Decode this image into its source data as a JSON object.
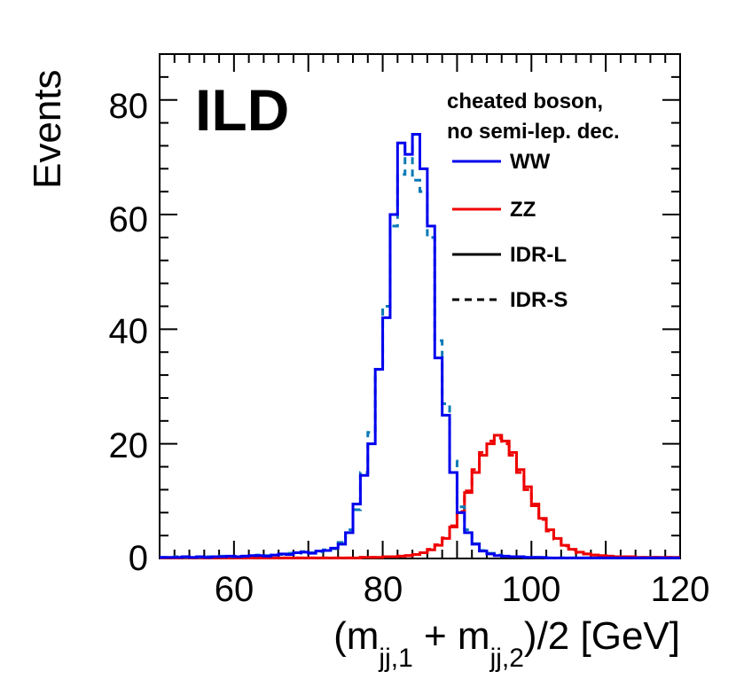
{
  "chart_data": {
    "type": "line",
    "title": "",
    "experiment_label": "ILD",
    "annotation_lines": [
      "cheated boson,",
      "no semi-lep. dec."
    ],
    "xlabel": {
      "open": "(m",
      "sub1": "jj,1",
      "mid": " + m",
      "sub2": "jj,2",
      "close": ")/2 [GeV]"
    },
    "ylabel": "Events",
    "xlim": [
      50,
      120
    ],
    "ylim": [
      0,
      88
    ],
    "xticks": [
      60,
      80,
      100,
      120
    ],
    "yticks": [
      0,
      20,
      40,
      60,
      80
    ],
    "x_tick_labels": [
      "60",
      "80",
      "100",
      "120"
    ],
    "y_tick_labels": [
      "0",
      "20",
      "40",
      "60",
      "80"
    ],
    "legend": [
      {
        "label": "WW",
        "color": "#0000ee",
        "style": "solid"
      },
      {
        "label": "ZZ",
        "color": "#ee0000",
        "style": "solid"
      },
      {
        "label": "IDR-L",
        "color": "#000000",
        "style": "solid"
      },
      {
        "label": "IDR-S",
        "color": "#000000",
        "style": "dashed"
      }
    ],
    "bin_edges_start": 50,
    "bin_width": 1,
    "series": [
      {
        "name": "WW IDR-L",
        "color": "#0000ee",
        "style": "solid",
        "values": [
          0.2,
          0.2,
          0.2,
          0.3,
          0.2,
          0.3,
          0.2,
          0.3,
          0.3,
          0.4,
          0.3,
          0.4,
          0.5,
          0.5,
          0.4,
          0.6,
          0.8,
          0.7,
          1.0,
          1.1,
          0.9,
          1.3,
          1.4,
          1.8,
          2.5,
          4.5,
          9.5,
          14.5,
          20,
          33,
          42,
          60,
          72.5,
          70.5,
          74,
          68,
          58,
          35,
          25,
          15,
          8,
          4.5,
          2.5,
          1.3,
          0.8,
          0.5,
          0.4,
          0.3,
          0.3,
          0.2,
          0.2,
          0.2,
          0.1,
          0.1,
          0.1,
          0.1,
          0.1,
          0.1,
          0.1,
          0.1,
          0.1,
          0.1,
          0.1,
          0.1,
          0.1,
          0.1,
          0.1,
          0.1,
          0.1,
          0.1
        ]
      },
      {
        "name": "WW IDR-S",
        "color": "#0a7ab5",
        "style": "dashed",
        "values": [
          0.2,
          0.2,
          0.3,
          0.2,
          0.3,
          0.2,
          0.3,
          0.3,
          0.4,
          0.3,
          0.4,
          0.4,
          0.5,
          0.6,
          0.5,
          0.6,
          0.7,
          0.9,
          0.9,
          1.2,
          1.0,
          1.2,
          1.5,
          1.7,
          2.8,
          5,
          8.5,
          15,
          22,
          33,
          44,
          58,
          67,
          72,
          66,
          64,
          56,
          38,
          27,
          17,
          9,
          5,
          2.6,
          1.4,
          0.9,
          0.6,
          0.4,
          0.3,
          0.3,
          0.2,
          0.2,
          0.2,
          0.1,
          0.1,
          0.1,
          0.1,
          0.1,
          0.1,
          0.1,
          0.1,
          0.1,
          0.1,
          0.1,
          0.1,
          0.1,
          0.1,
          0.1,
          0.1,
          0.1,
          0.1
        ]
      },
      {
        "name": "ZZ IDR-L",
        "color": "#ee0000",
        "style": "solid",
        "values": [
          0.1,
          0.1,
          0.1,
          0.1,
          0.1,
          0.1,
          0.1,
          0.1,
          0.1,
          0.1,
          0.1,
          0.1,
          0.1,
          0.1,
          0.1,
          0.1,
          0.1,
          0.1,
          0.1,
          0.1,
          0.1,
          0.1,
          0.1,
          0.1,
          0.1,
          0.1,
          0.1,
          0.2,
          0.2,
          0.2,
          0.3,
          0.3,
          0.4,
          0.5,
          0.7,
          1.0,
          1.5,
          2.3,
          3.5,
          5.5,
          8,
          11.5,
          15,
          18,
          20,
          21.5,
          20.5,
          18.5,
          15.5,
          12.5,
          9.5,
          7,
          5,
          3.5,
          2.3,
          1.6,
          1.1,
          0.8,
          0.6,
          0.5,
          0.4,
          0.3,
          0.3,
          0.3,
          0.2,
          0.2,
          0.2,
          0.2,
          0.2,
          0.2
        ]
      },
      {
        "name": "ZZ IDR-S",
        "color": "#ee0000",
        "style": "dashed",
        "values": [
          0.1,
          0.1,
          0.1,
          0.1,
          0.1,
          0.1,
          0.1,
          0.1,
          0.1,
          0.1,
          0.1,
          0.1,
          0.1,
          0.1,
          0.1,
          0.1,
          0.1,
          0.1,
          0.1,
          0.1,
          0.1,
          0.1,
          0.1,
          0.1,
          0.1,
          0.1,
          0.1,
          0.2,
          0.2,
          0.2,
          0.3,
          0.3,
          0.4,
          0.5,
          0.7,
          1.0,
          1.6,
          2.4,
          3.6,
          5.7,
          8.2,
          11.8,
          15.5,
          18.5,
          20.5,
          21.0,
          20,
          18.0,
          15.0,
          12.0,
          9.2,
          6.8,
          4.8,
          3.4,
          2.2,
          1.5,
          1.0,
          0.8,
          0.6,
          0.5,
          0.4,
          0.3,
          0.3,
          0.3,
          0.2,
          0.2,
          0.2,
          0.2,
          0.2,
          0.2
        ]
      }
    ]
  }
}
